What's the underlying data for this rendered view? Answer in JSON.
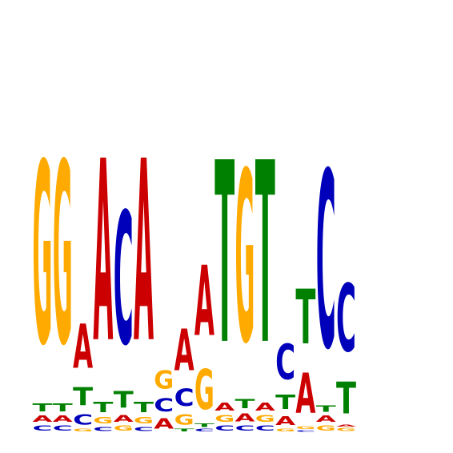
{
  "colors": {
    "A": "#cc0000",
    "C": "#0000bb",
    "G": "#ffaa00",
    "T": "#008000"
  },
  "motif": [
    [
      [
        "C",
        0.1
      ],
      [
        "A",
        0.12
      ],
      [
        "T",
        0.15
      ],
      [
        "G",
        3.5
      ]
    ],
    [
      [
        "C",
        0.1
      ],
      [
        "A",
        0.12
      ],
      [
        "T",
        0.15
      ],
      [
        "G",
        3.5
      ]
    ],
    [
      [
        "G",
        0.05
      ],
      [
        "C",
        0.2
      ],
      [
        "T",
        0.35
      ],
      [
        "A",
        0.85
      ]
    ],
    [
      [
        "C",
        0.08
      ],
      [
        "G",
        0.12
      ],
      [
        "T",
        0.2
      ],
      [
        "A",
        3.5
      ]
    ],
    [
      [
        "G",
        0.1
      ],
      [
        "A",
        0.13
      ],
      [
        "T",
        0.32
      ],
      [
        "C",
        2.55
      ]
    ],
    [
      [
        "C",
        0.08
      ],
      [
        "G",
        0.12
      ],
      [
        "T",
        0.2
      ],
      [
        "A",
        3.5
      ]
    ],
    [
      [
        "A",
        0.2
      ],
      [
        "C",
        0.25
      ],
      [
        "G",
        0.35
      ]
    ],
    [
      [
        "T",
        0.05
      ],
      [
        "G",
        0.2
      ],
      [
        "C",
        0.33
      ],
      [
        "A",
        0.8
      ]
    ],
    [
      [
        "C",
        0.05
      ],
      [
        "T",
        0.07
      ],
      [
        "G",
        0.77
      ],
      [
        "A",
        1.35
      ]
    ],
    [
      [
        "C",
        0.1
      ],
      [
        "G",
        0.13
      ],
      [
        "A",
        0.15
      ],
      [
        "T",
        3.5
      ]
    ],
    [
      [
        "C",
        0.1
      ],
      [
        "A",
        0.15
      ],
      [
        "T",
        0.18
      ],
      [
        "G",
        3.3
      ]
    ],
    [
      [
        "C",
        0.1
      ],
      [
        "G",
        0.13
      ],
      [
        "A",
        0.15
      ],
      [
        "T",
        3.5
      ]
    ],
    [
      [
        "G",
        0.05
      ],
      [
        "A",
        0.17
      ],
      [
        "T",
        0.28
      ],
      [
        "C",
        0.68
      ]
    ],
    [
      [
        "C",
        0.03
      ],
      [
        "G",
        0.05
      ],
      [
        "A",
        0.77
      ],
      [
        "T",
        1.05
      ]
    ],
    [
      [
        "G",
        0.1
      ],
      [
        "A",
        0.12
      ],
      [
        "T",
        0.12
      ],
      [
        "C",
        3.4
      ]
    ],
    [
      [
        "G",
        0.06
      ],
      [
        "A",
        0.04
      ],
      [
        "T",
        0.61
      ],
      [
        "C",
        1.3
      ]
    ]
  ]
}
